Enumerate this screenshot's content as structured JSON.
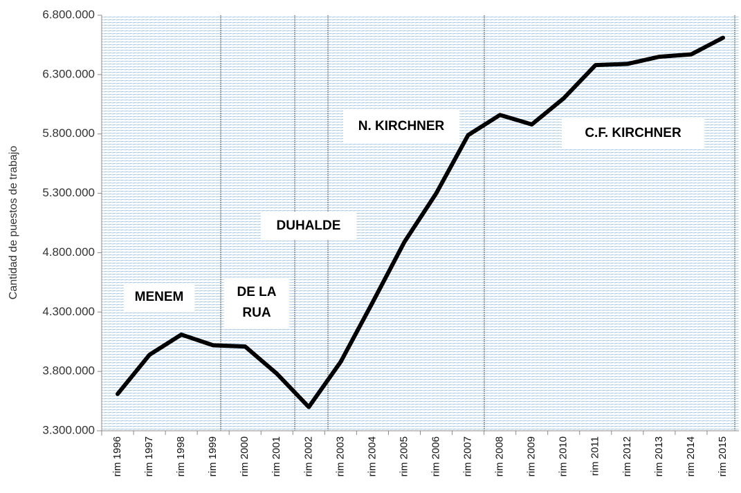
{
  "chart_data": {
    "type": "line",
    "y_label": "Cantidad de puestos de trabajo",
    "annotations": [
      "MENEM",
      "DE LA",
      "RUA",
      "DUHALDE",
      "N. KIRCHNER",
      "C.F. KIRCHNER"
    ],
    "categories": [
      "rim 1996",
      "rim 1997",
      "rim 1998",
      "rim 1999",
      "rim 2000",
      "rim 2001",
      "rim 2002",
      "rim 2003",
      "rim 2004",
      "rim 2005",
      "rim 2006",
      "rim 2007",
      "rim 2008",
      "rim 2009",
      "rim 2010",
      "rim 2011",
      "rim 2012",
      "rim 2013",
      "rim 2014",
      "rim 2015"
    ],
    "series": [
      {
        "color": "#000000",
        "values": [
          3610000,
          3940000,
          4110000,
          4020000,
          4010000,
          3780000,
          3500000,
          3880000,
          4380000,
          4890000,
          5300000,
          5790000,
          5960000,
          5880000,
          6100000,
          6380000,
          6390000,
          6450000,
          6470000,
          6610000
        ]
      }
    ],
    "ylim": [
      3300000,
      6800000
    ],
    "yticks": [
      {
        "value": 3300000,
        "label": "3.300.000"
      },
      {
        "value": 3800000,
        "label": "3.800.000"
      },
      {
        "value": 4300000,
        "label": "4.300.000"
      },
      {
        "value": 4800000,
        "label": "4.800.000"
      },
      {
        "value": 5300000,
        "label": "5.300.000"
      },
      {
        "value": 5800000,
        "label": "5.800.000"
      },
      {
        "value": 6300000,
        "label": "6.300.000"
      },
      {
        "value": 6800000,
        "label": "6.800.000"
      }
    ]
  }
}
